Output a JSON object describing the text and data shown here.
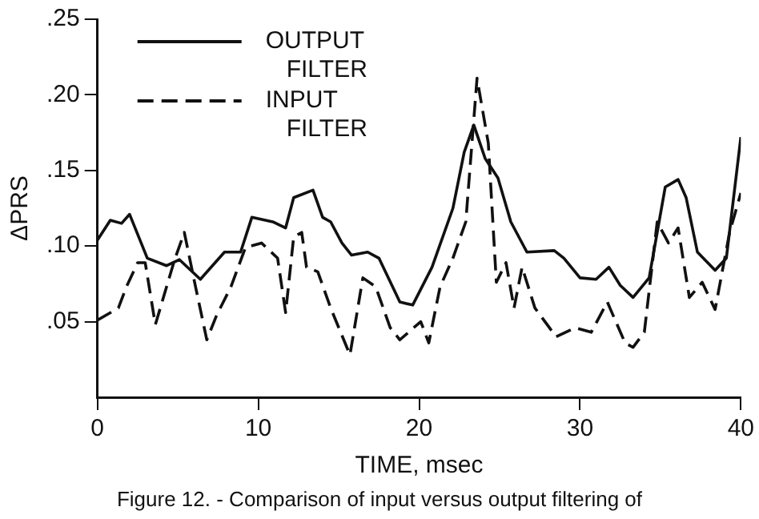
{
  "chart_data": {
    "type": "line",
    "xlabel": "TIME, msec",
    "ylabel": "ΔPRS",
    "xlim": [
      0,
      40
    ],
    "xticks": [
      0,
      10,
      20,
      30,
      40
    ],
    "ylim": [
      0,
      0.25
    ],
    "yticks": [
      {
        "value": 0.05,
        "label": ".05"
      },
      {
        "value": 0.1,
        "label": ".10"
      },
      {
        "value": 0.15,
        "label": ".15"
      },
      {
        "value": 0.2,
        "label": ".20"
      },
      {
        "value": 0.25,
        "label": ".25"
      }
    ],
    "grid": false,
    "legend": "top left",
    "marker": "none",
    "annotations": [
      "Figure 12. - Comparison of input versus output filtering of"
    ],
    "series": [
      {
        "name": "OUTPUT FILTER",
        "color": "#111111",
        "line_style": "solid",
        "x": [
          0,
          0.8,
          1.5,
          2,
          3.1,
          4.3,
          5.1,
          6.4,
          7.9,
          8.9,
          9.6,
          10.9,
          11.7,
          12.2,
          13.4,
          14,
          14.5,
          15.2,
          15.8,
          16.8,
          17.5,
          18.8,
          19.6,
          20.8,
          22.1,
          22.8,
          23.4,
          24.1,
          24.9,
          25.7,
          26.7,
          28.4,
          29,
          30,
          31,
          31.8,
          32.5,
          33.3,
          34.3,
          35.3,
          36.1,
          36.6,
          37.3,
          38.4,
          39.1,
          40
        ],
        "values": [
          0.104,
          0.117,
          0.115,
          0.121,
          0.092,
          0.087,
          0.091,
          0.078,
          0.096,
          0.096,
          0.119,
          0.116,
          0.112,
          0.132,
          0.137,
          0.119,
          0.116,
          0.102,
          0.094,
          0.096,
          0.092,
          0.063,
          0.061,
          0.086,
          0.125,
          0.162,
          0.18,
          0.158,
          0.145,
          0.116,
          0.096,
          0.097,
          0.092,
          0.079,
          0.078,
          0.086,
          0.074,
          0.066,
          0.079,
          0.139,
          0.144,
          0.132,
          0.096,
          0.084,
          0.092,
          0.172
        ]
      },
      {
        "name": "INPUT FILTER",
        "color": "#111111",
        "line_style": "dashed",
        "x": [
          0,
          1.3,
          1.8,
          2.5,
          2.97,
          3.6,
          4.8,
          5.4,
          6.1,
          6.8,
          7.4,
          8.3,
          9.2,
          10.2,
          11.2,
          11.7,
          12.2,
          12.7,
          13,
          13.7,
          14.5,
          15.7,
          16.5,
          17.3,
          18.2,
          18.8,
          20.1,
          20.6,
          21.3,
          22.1,
          22.9,
          23.6,
          24.3,
          24.8,
          25.4,
          25.9,
          26.4,
          27.2,
          28.1,
          28.5,
          29.7,
          30.7,
          31.7,
          32.8,
          33.3,
          34,
          34.8,
          35.5,
          36.1,
          36.8,
          37.6,
          38.4,
          39.3,
          40
        ],
        "values": [
          0.051,
          0.059,
          0.073,
          0.089,
          0.089,
          0.048,
          0.091,
          0.109,
          0.073,
          0.038,
          0.054,
          0.073,
          0.099,
          0.102,
          0.092,
          0.056,
          0.106,
          0.109,
          0.086,
          0.083,
          0.059,
          0.028,
          0.079,
          0.073,
          0.046,
          0.038,
          0.05,
          0.036,
          0.073,
          0.092,
          0.116,
          0.211,
          0.168,
          0.076,
          0.089,
          0.059,
          0.086,
          0.059,
          0.046,
          0.04,
          0.046,
          0.043,
          0.063,
          0.036,
          0.033,
          0.043,
          0.116,
          0.102,
          0.112,
          0.066,
          0.076,
          0.058,
          0.109,
          0.135
        ]
      }
    ]
  }
}
